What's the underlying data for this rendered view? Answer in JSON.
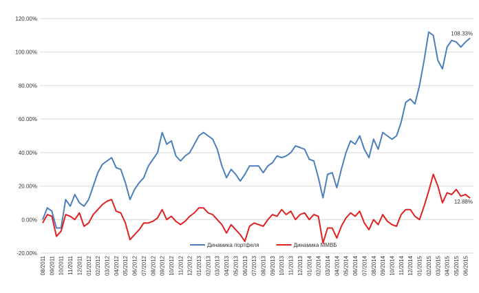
{
  "chart_data": {
    "type": "line",
    "categories": [
      "08/2011",
      null,
      "09/2011",
      null,
      "10/2011",
      null,
      "11/2011",
      null,
      "12/2011",
      null,
      "01/2012",
      null,
      "02/2012",
      null,
      "03/2012",
      null,
      "04/2012",
      null,
      "05/2012",
      null,
      "06/2012",
      null,
      "07/2012",
      null,
      "08/2012",
      null,
      "09/2012",
      null,
      "10/2012",
      null,
      "11/2012",
      null,
      "12/2012",
      null,
      "01/2013",
      null,
      "02/2013",
      null,
      "03/2013",
      null,
      "04/2013",
      null,
      "05/2013",
      null,
      "06/2013",
      null,
      "07/2013",
      null,
      "08/2013",
      null,
      "09/2013",
      null,
      "10/2013",
      null,
      "11/2013",
      null,
      "12/2013",
      null,
      "01/2014",
      null,
      "02/2014",
      null,
      "03/2014",
      null,
      "04/2014",
      null,
      "05/2014",
      null,
      "06/2014",
      null,
      "07/2014",
      null,
      "08/2014",
      null,
      "09/2014",
      null,
      "10/2014",
      null,
      "11/2014",
      null,
      "12/2014",
      null,
      "01/2015",
      null,
      "02/2015",
      null,
      "03/2015",
      null,
      "04/2015",
      null,
      "05/2015",
      null,
      "06/2015",
      null
    ],
    "series": [
      {
        "name": "Динамика портфеля",
        "color": "#4a7ebb",
        "values": [
          0,
          7,
          5,
          -5,
          -5,
          12,
          8,
          15,
          10,
          8,
          12,
          20,
          28,
          33,
          35,
          37,
          31,
          30,
          22,
          12,
          18,
          22,
          25,
          32,
          36,
          40,
          52,
          45,
          47,
          38,
          35,
          38,
          40,
          45,
          50,
          52,
          50,
          48,
          42,
          32,
          25,
          30,
          27,
          23,
          27,
          32,
          32,
          32,
          28,
          32,
          34,
          38,
          37,
          38,
          40,
          44,
          43,
          42,
          36,
          35,
          25,
          13,
          27,
          28,
          19,
          30,
          40,
          47,
          45,
          50,
          42,
          37,
          48,
          42,
          52,
          50,
          48,
          50,
          58,
          70,
          72,
          69,
          80,
          95,
          112,
          110,
          95,
          90,
          103,
          107,
          106,
          103,
          106,
          108.33
        ],
        "value_labels": [
          null,
          null,
          null,
          null,
          null,
          null,
          null,
          null,
          null,
          null,
          null,
          null,
          null,
          null,
          null,
          null,
          null,
          null,
          null,
          null,
          null,
          null,
          null,
          null,
          null,
          null,
          null,
          null,
          null,
          null,
          null,
          null,
          null,
          null,
          null,
          null,
          null,
          null,
          null,
          null,
          null,
          null,
          null,
          null,
          null,
          null,
          null,
          null,
          null,
          null,
          null,
          null,
          null,
          null,
          null,
          null,
          null,
          null,
          null,
          null,
          null,
          null,
          null,
          null,
          null,
          null,
          null,
          null,
          null,
          null,
          null,
          null,
          null,
          null,
          null,
          null,
          null,
          null,
          null,
          null,
          null,
          null,
          null,
          null,
          null,
          null,
          null,
          null,
          null,
          null,
          null,
          null,
          null,
          "108.33%"
        ]
      },
      {
        "name": "Динамика ММВБ",
        "color": "#e02020",
        "values": [
          -2,
          3,
          2,
          -10,
          -7,
          3,
          2,
          0,
          4,
          -4,
          -2,
          3,
          6,
          9,
          11,
          12,
          5,
          4,
          -2,
          -12,
          -9,
          -6,
          -2,
          -2,
          -1,
          1,
          6,
          0,
          2,
          -1,
          -3,
          -1,
          2,
          4,
          7,
          7,
          4,
          3,
          0,
          -3,
          -8,
          -3,
          -6,
          -9,
          -13,
          -4,
          -2,
          -3,
          -4,
          0,
          3,
          2,
          6,
          3,
          5,
          0,
          3,
          4,
          0,
          3,
          2,
          -14,
          -5,
          -5,
          -11,
          -4,
          1,
          4,
          2,
          5,
          -2,
          -6,
          0,
          -3,
          3,
          -1,
          -3,
          -4,
          3,
          6,
          6,
          2,
          0,
          8,
          17,
          27,
          20,
          10,
          16,
          15,
          18,
          14,
          15,
          12.88
        ],
        "value_labels": [
          null,
          null,
          null,
          null,
          null,
          null,
          null,
          null,
          null,
          null,
          null,
          null,
          null,
          null,
          null,
          null,
          null,
          null,
          null,
          null,
          null,
          null,
          null,
          null,
          null,
          null,
          null,
          null,
          null,
          null,
          null,
          null,
          null,
          null,
          null,
          null,
          null,
          null,
          null,
          null,
          null,
          null,
          null,
          null,
          null,
          null,
          null,
          null,
          null,
          null,
          null,
          null,
          null,
          null,
          null,
          null,
          null,
          null,
          null,
          null,
          null,
          null,
          null,
          null,
          null,
          null,
          null,
          null,
          null,
          null,
          null,
          null,
          null,
          null,
          null,
          null,
          null,
          null,
          null,
          null,
          null,
          null,
          null,
          null,
          null,
          null,
          null,
          null,
          null,
          null,
          null,
          null,
          null,
          "12.88%"
        ]
      }
    ],
    "ylim": [
      -20,
      120
    ],
    "yticks": [
      {
        "value": -20,
        "label": "-20.00%"
      },
      {
        "value": 0,
        "label": "0.00%"
      },
      {
        "value": 20,
        "label": "20.00%"
      },
      {
        "value": 40,
        "label": "40.00%"
      },
      {
        "value": 60,
        "label": "60.00%"
      },
      {
        "value": 80,
        "label": "80.00%"
      },
      {
        "value": 100,
        "label": "100.00%"
      },
      {
        "value": 120,
        "label": "120.00%"
      }
    ],
    "grid": true,
    "legend": "bottom"
  }
}
